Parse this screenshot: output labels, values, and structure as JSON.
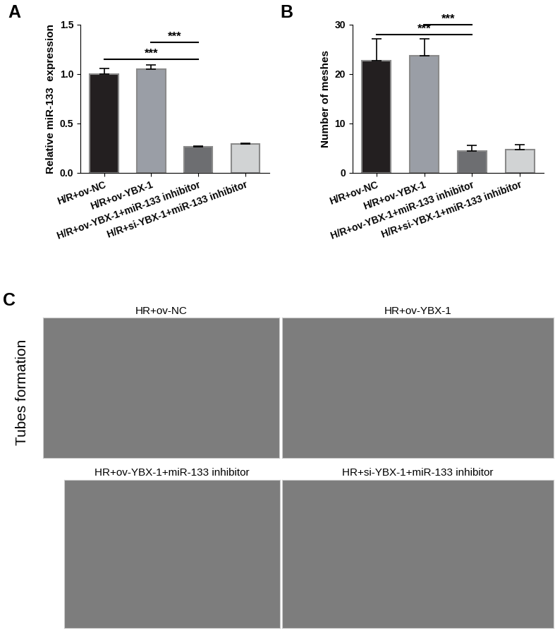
{
  "chart_data": [
    {
      "type": "bar",
      "panel": "A",
      "y_label": "Relative miR-133  expression",
      "categories": [
        "H/R+ov-NC",
        "H/R+ov-YBX-1",
        "H/R+ov-YBX-1+miR-133 inhibitor",
        "H/R+si-YBX-1+miR-133 inhibitor"
      ],
      "values": [
        1.0,
        1.05,
        0.26,
        0.29
      ],
      "error": [
        0.06,
        0.04,
        0.01,
        0.01
      ],
      "colors": [
        "#231f20",
        "#9a9ea6",
        "#6d6e71",
        "#d1d3d4"
      ],
      "ylim": [
        0,
        1.5
      ],
      "yticks": [
        {
          "value": 0,
          "label": "0.0"
        },
        {
          "value": 0.5,
          "label": "0.5"
        },
        {
          "value": 1,
          "label": "1.0"
        },
        {
          "value": 1.5,
          "label": "1.5"
        }
      ],
      "significance": [
        {
          "from": 0,
          "to": 2,
          "y": 1.15,
          "label": "***"
        },
        {
          "from": 1,
          "to": 2,
          "y": 1.32,
          "label": "***"
        }
      ]
    },
    {
      "type": "bar",
      "panel": "B",
      "y_label": "Number of meshes",
      "categories": [
        "H/R+ov-NC",
        "H/R+ov-YBX-1",
        "H/R+ov-YBX-1+miR-133 inhibitor",
        "H/R+si-YBX-1+miR-133 inhibitor"
      ],
      "values": [
        22.7,
        23.7,
        4.4,
        4.7
      ],
      "error": [
        4.5,
        3.5,
        1.2,
        1.0
      ],
      "colors": [
        "#231f20",
        "#9a9ea6",
        "#6d6e71",
        "#d1d3d4"
      ],
      "ylim": [
        0,
        30
      ],
      "yticks": [
        0,
        10,
        20,
        30
      ],
      "significance": [
        {
          "from": 0,
          "to": 2,
          "y": 28,
          "label": "***"
        },
        {
          "from": 1,
          "to": 2,
          "y": 30,
          "label": "***"
        }
      ]
    }
  ],
  "image_panel": {
    "panel": "C",
    "side_label": "Tubes formation",
    "titles": [
      "HR+ov-NC",
      "HR+ov-YBX-1",
      "HR+ov-YBX-1+miR-133 inhibitor",
      "HR+si-YBX-1+miR-133 inhibitor"
    ]
  }
}
